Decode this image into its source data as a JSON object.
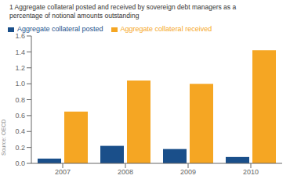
{
  "chart_data": {
    "type": "bar",
    "title": "1  Aggregate collateral posted and received by sovereign debt managers as a\npercentage of notional amounts outstanding",
    "annotations": [
      "Source: OECD"
    ],
    "categories": [
      "2007",
      "2008",
      "2009",
      "2010"
    ],
    "series": [
      {
        "name": "Aggregate collateral posted",
        "color": "#1a4f8a",
        "values": [
          0.06,
          0.22,
          0.18,
          0.08
        ]
      },
      {
        "name": "Aggregate collateral received",
        "color": "#f5a623",
        "values": [
          0.65,
          1.04,
          1.0,
          1.42
        ]
      }
    ],
    "ylim": [
      0,
      1.6
    ],
    "yticks": [
      {
        "value": 0,
        "label": "0.0"
      },
      0.2,
      0.4,
      0.6,
      0.8,
      {
        "value": 1.0,
        "label": "1.0"
      },
      1.2,
      1.4,
      1.6
    ],
    "grid": false,
    "legend": "upper left"
  }
}
